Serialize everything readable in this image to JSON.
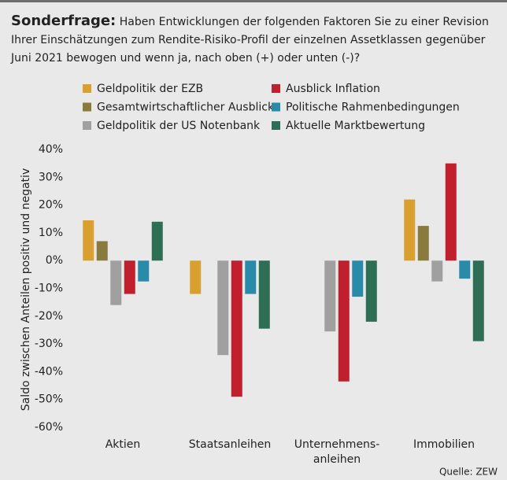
{
  "chart_data": {
    "type": "bar",
    "title": "Sonderfrage:",
    "subtitle": "Haben Entwicklungen der folgenden Faktoren Sie zu einer Revision Ihrer Einschätzungen zum Rendite-Risiko-Profil der einzelnen Assetklassen gegenüber Juni 2021 bewogen und wenn ja, nach oben (+) oder unten (-)?",
    "y_label": "Saldo zwischen Anteilen positiv und negativ",
    "source": "Quelle: ZEW",
    "categories": [
      "Aktien",
      "Staatsanleihen",
      "Unternehmens-\nanleihen",
      "Immobilien"
    ],
    "series": [
      {
        "name": "Geldpolitik der EZB",
        "color": "#d9a030",
        "values": [
          14.5,
          -12,
          null,
          22
        ]
      },
      {
        "name": "Gesamtwirtschaftlicher Ausblick",
        "color": "#8a7a3c",
        "values": [
          7,
          null,
          null,
          12.5
        ]
      },
      {
        "name": "Geldpolitik der US Notenbank",
        "color": "#a0a0a0",
        "values": [
          -16,
          -34,
          -25.5,
          -7.5
        ]
      },
      {
        "name": "Ausblick Inflation",
        "color": "#c0202e",
        "values": [
          -12,
          -49,
          -43.5,
          35
        ]
      },
      {
        "name": "Politische Rahmenbedingungen",
        "color": "#2a8aaa",
        "values": [
          -7.5,
          -12,
          -13,
          -6.5
        ]
      },
      {
        "name": "Aktuelle Marktbewertung",
        "color": "#2e6e55",
        "values": [
          14,
          -24.5,
          -22,
          -29
        ]
      }
    ],
    "ylim": [
      -60,
      40
    ],
    "yticks": [
      {
        "value": 40,
        "label": "40%"
      },
      {
        "value": 30,
        "label": "30%"
      },
      {
        "value": 20,
        "label": "20%"
      },
      {
        "value": 10,
        "label": "10%"
      },
      {
        "value": 0,
        "label": "0%"
      },
      {
        "value": -10,
        "label": "-10%"
      },
      {
        "value": -20,
        "label": "-20%"
      },
      {
        "value": -30,
        "label": "-30%"
      },
      {
        "value": -40,
        "label": "-40%"
      },
      {
        "value": -50,
        "label": "-50%"
      },
      {
        "value": -60,
        "label": "-60%"
      }
    ],
    "grid": false
  }
}
